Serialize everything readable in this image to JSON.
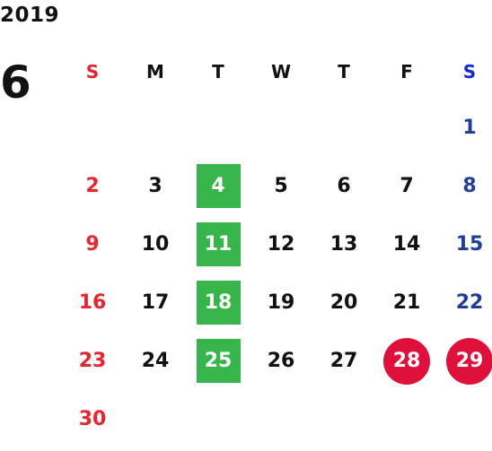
{
  "calendar": {
    "year": "2019",
    "month": "6",
    "weekdays": [
      "S",
      "M",
      "T",
      "W",
      "T",
      "F",
      "S"
    ],
    "weeks": [
      [
        {
          "d": "",
          "s": ""
        },
        {
          "d": "",
          "s": ""
        },
        {
          "d": "",
          "s": ""
        },
        {
          "d": "",
          "s": ""
        },
        {
          "d": "",
          "s": ""
        },
        {
          "d": "",
          "s": ""
        },
        {
          "d": "1",
          "s": "normal"
        }
      ],
      [
        {
          "d": "2",
          "s": "normal"
        },
        {
          "d": "3",
          "s": "normal"
        },
        {
          "d": "4",
          "s": "green"
        },
        {
          "d": "5",
          "s": "normal"
        },
        {
          "d": "6",
          "s": "normal"
        },
        {
          "d": "7",
          "s": "normal"
        },
        {
          "d": "8",
          "s": "normal"
        }
      ],
      [
        {
          "d": "9",
          "s": "normal"
        },
        {
          "d": "10",
          "s": "normal"
        },
        {
          "d": "11",
          "s": "green"
        },
        {
          "d": "12",
          "s": "normal"
        },
        {
          "d": "13",
          "s": "normal"
        },
        {
          "d": "14",
          "s": "normal"
        },
        {
          "d": "15",
          "s": "normal"
        }
      ],
      [
        {
          "d": "16",
          "s": "normal"
        },
        {
          "d": "17",
          "s": "normal"
        },
        {
          "d": "18",
          "s": "green"
        },
        {
          "d": "19",
          "s": "normal"
        },
        {
          "d": "20",
          "s": "normal"
        },
        {
          "d": "21",
          "s": "normal"
        },
        {
          "d": "22",
          "s": "normal"
        }
      ],
      [
        {
          "d": "23",
          "s": "normal"
        },
        {
          "d": "24",
          "s": "normal"
        },
        {
          "d": "25",
          "s": "green"
        },
        {
          "d": "26",
          "s": "normal"
        },
        {
          "d": "27",
          "s": "normal"
        },
        {
          "d": "28",
          "s": "holiday"
        },
        {
          "d": "29",
          "s": "holiday"
        }
      ],
      [
        {
          "d": "30",
          "s": "normal"
        },
        {
          "d": "",
          "s": ""
        },
        {
          "d": "",
          "s": ""
        },
        {
          "d": "",
          "s": ""
        },
        {
          "d": "",
          "s": ""
        },
        {
          "d": "",
          "s": ""
        },
        {
          "d": "",
          "s": ""
        }
      ]
    ]
  },
  "colors": {
    "sunday": "#e3262f",
    "saturday": "#1f3d99",
    "saturday_header": "#1428d6",
    "green_highlight": "#38b54a",
    "holiday_circle": "#e0103c"
  }
}
